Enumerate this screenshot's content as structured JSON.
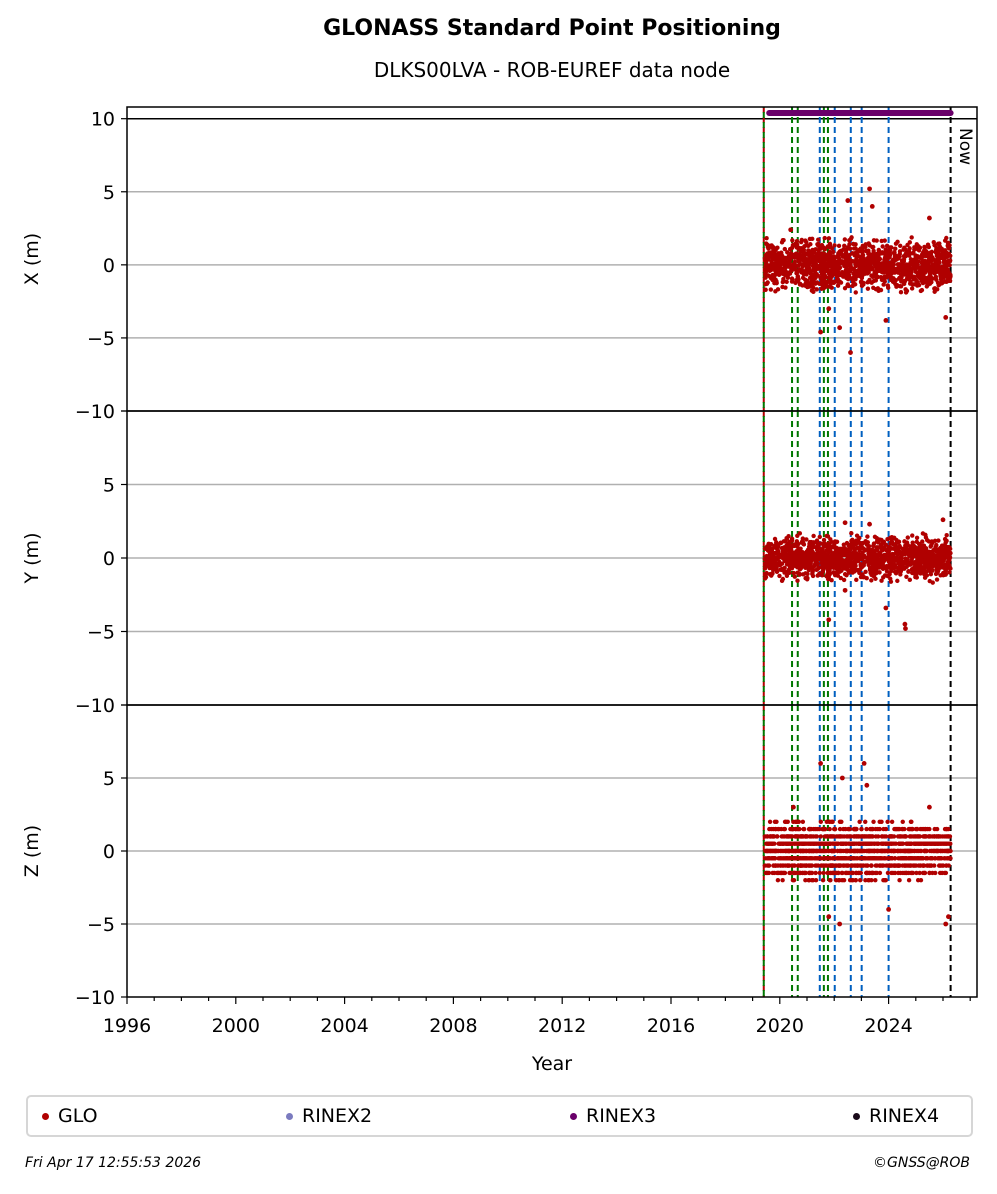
{
  "header": {
    "title": "GLONASS Standard Point Positioning",
    "subtitle": "DLKS00LVA - ROB-EUREF data node"
  },
  "footer": {
    "timestamp": "Fri Apr 17 12:55:53 2026",
    "credit": "©GNSS@ROB"
  },
  "legend": [
    {
      "label": "GLO",
      "color": "#b00000"
    },
    {
      "label": "RINEX2",
      "color": "#7b7bbf"
    },
    {
      "label": "RINEX3",
      "color": "#6a006a"
    },
    {
      "label": "RINEX4",
      "color": "#1a0a1a"
    }
  ],
  "chart_data": {
    "type": "scatter",
    "xlabel": "Year",
    "xlim": [
      1996,
      2027.25
    ],
    "xticks": [
      "1996",
      "2000",
      "2004",
      "2008",
      "2012",
      "2016",
      "2020",
      "2024"
    ],
    "now_label": "Now",
    "now_year": 2026.28,
    "rinex3_span": [
      2019.5,
      2026.28
    ],
    "event_lines": [
      {
        "year": 2019.41,
        "color": "#b00000"
      },
      {
        "year": 2019.41,
        "color": "#007700"
      },
      {
        "year": 2020.45,
        "color": "#007700"
      },
      {
        "year": 2020.66,
        "color": "#007700"
      },
      {
        "year": 2021.47,
        "color": "#0060c0"
      },
      {
        "year": 2021.62,
        "color": "#007700"
      },
      {
        "year": 2021.77,
        "color": "#007700"
      },
      {
        "year": 2022.02,
        "color": "#0060c0"
      },
      {
        "year": 2022.61,
        "color": "#0060c0"
      },
      {
        "year": 2023.01,
        "color": "#0060c0"
      },
      {
        "year": 2024.0,
        "color": "#0060c0"
      }
    ],
    "panels": [
      {
        "ylabel": "X (m)",
        "ylim": [
          -10,
          10.8
        ],
        "yticks": [
          "10",
          "5",
          "0",
          "−5",
          "−10"
        ],
        "data_start": 2019.45,
        "data_end": 2026.28,
        "spread": 1.3,
        "quant": 0,
        "outliers": [
          [
            2023.3,
            5.2
          ],
          [
            2022.5,
            4.4
          ],
          [
            2023.4,
            4.0
          ],
          [
            2021.5,
            -4.6
          ],
          [
            2022.6,
            -6.0
          ],
          [
            2023.9,
            -3.8
          ],
          [
            2026.1,
            -3.6
          ],
          [
            2025.5,
            3.2
          ],
          [
            2022.2,
            -4.3
          ],
          [
            2021.8,
            -3.0
          ],
          [
            2020.4,
            2.4
          ]
        ]
      },
      {
        "ylabel": "Y (m)",
        "ylim": [
          -10,
          10
        ],
        "yticks": [
          "10",
          "5",
          "0",
          "−5",
          "−10"
        ],
        "data_start": 2019.45,
        "data_end": 2026.28,
        "spread": 1.1,
        "quant": 0,
        "outliers": [
          [
            2024.6,
            -4.5
          ],
          [
            2024.62,
            -4.8
          ],
          [
            2021.8,
            -4.2
          ],
          [
            2023.9,
            -3.4
          ],
          [
            2026.0,
            2.6
          ],
          [
            2022.4,
            2.4
          ],
          [
            2023.3,
            2.3
          ],
          [
            2022.4,
            -2.2
          ]
        ]
      },
      {
        "ylabel": "Z (m)",
        "ylim": [
          -10,
          10
        ],
        "yticks": [
          "10",
          "5",
          "0",
          "−5",
          "−10"
        ],
        "data_start": 2019.45,
        "data_end": 2026.28,
        "spread": 1.6,
        "quant": 0.5,
        "outliers": [
          [
            2021.5,
            6.0
          ],
          [
            2023.1,
            6.0
          ],
          [
            2023.2,
            4.5
          ],
          [
            2022.3,
            5.0
          ],
          [
            2021.8,
            -4.5
          ],
          [
            2022.2,
            -5.0
          ],
          [
            2024.0,
            -4.0
          ],
          [
            2026.1,
            -5.0
          ],
          [
            2026.2,
            -4.5
          ],
          [
            2020.5,
            3.0
          ],
          [
            2025.5,
            3.0
          ]
        ]
      }
    ]
  }
}
